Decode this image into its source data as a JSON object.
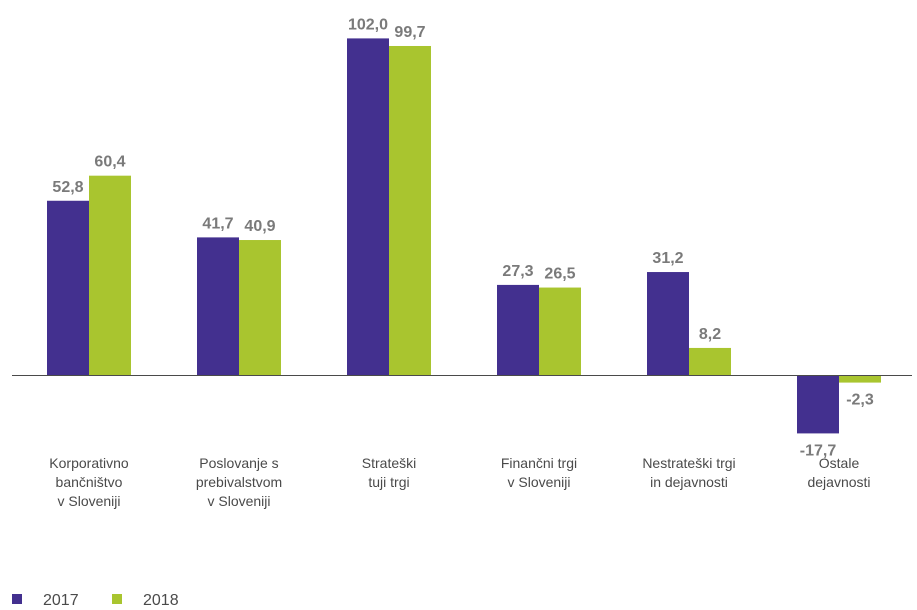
{
  "chart_data": {
    "type": "bar",
    "title": "",
    "xlabel": "",
    "ylabel": "",
    "categories": [
      [
        "Korporativno",
        "bančništvo",
        "v Sloveniji"
      ],
      [
        "Poslovanje s",
        "prebivalstvom",
        "v Sloveniji"
      ],
      [
        "Strateški",
        "tuji trgi"
      ],
      [
        "Finančni trgi",
        "v Sloveniji"
      ],
      [
        "Nestrateški trgi",
        "in dejavnosti"
      ],
      [
        "Ostale",
        "dejavnosti"
      ]
    ],
    "series": [
      {
        "name": "2017",
        "color": "#43308f",
        "values": [
          52.8,
          41.7,
          102.0,
          27.3,
          31.2,
          -17.7
        ],
        "labels": [
          "52,8",
          "41,7",
          "102,0",
          "27,3",
          "31,2",
          "-17,7"
        ]
      },
      {
        "name": "2018",
        "color": "#a9c52f",
        "values": [
          60.4,
          40.9,
          99.7,
          26.5,
          8.2,
          -2.3
        ],
        "labels": [
          "60,4",
          "40,9",
          "99,7",
          "26,5",
          "8,2",
          "-2,3"
        ]
      }
    ],
    "ylim": [
      -25,
      110
    ],
    "grid": false,
    "legend": "bottom-left",
    "axis_color": "#4a4a4a"
  }
}
